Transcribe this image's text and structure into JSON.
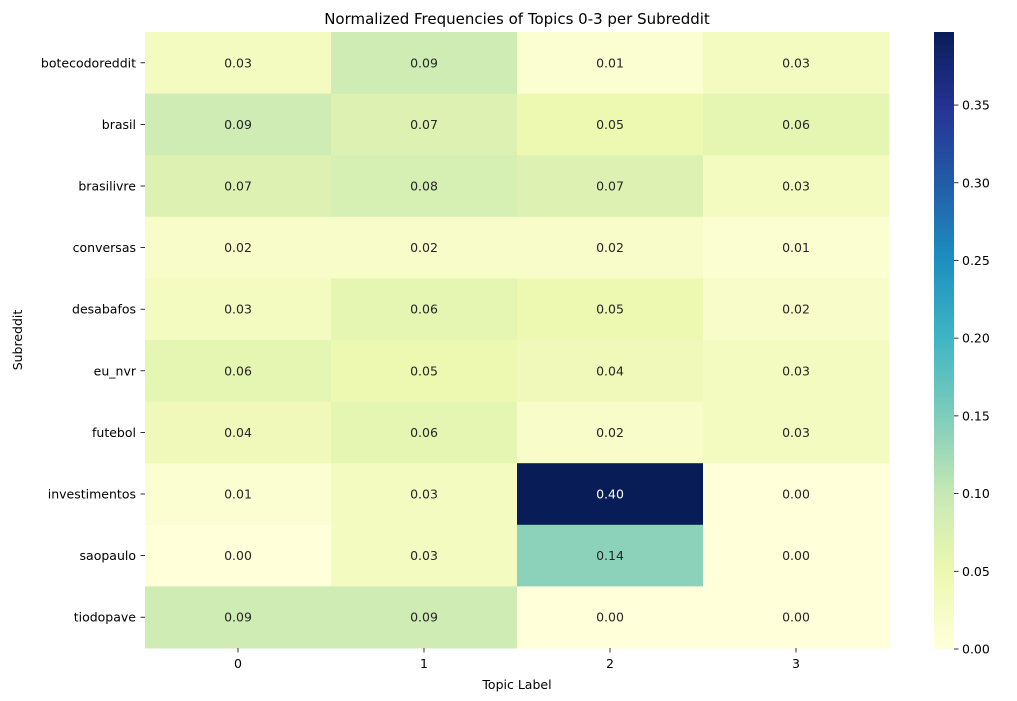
{
  "chart_data": {
    "type": "heatmap",
    "title": "Normalized Frequencies of Topics 0-3 per Subreddit",
    "xlabel": "Topic Label",
    "ylabel": "Subreddit",
    "x_categories": [
      "0",
      "1",
      "2",
      "3"
    ],
    "y_categories": [
      "botecodoreddit",
      "brasil",
      "brasilivre",
      "conversas",
      "desabafos",
      "eu_nvr",
      "futebol",
      "investimentos",
      "saopaulo",
      "tiodopave"
    ],
    "values": [
      [
        0.03,
        0.09,
        0.01,
        0.03
      ],
      [
        0.09,
        0.07,
        0.05,
        0.06
      ],
      [
        0.07,
        0.08,
        0.07,
        0.03
      ],
      [
        0.02,
        0.02,
        0.02,
        0.01
      ],
      [
        0.03,
        0.06,
        0.05,
        0.02
      ],
      [
        0.06,
        0.05,
        0.04,
        0.03
      ],
      [
        0.04,
        0.06,
        0.02,
        0.03
      ],
      [
        0.01,
        0.03,
        0.4,
        0.0
      ],
      [
        0.0,
        0.03,
        0.14,
        0.0
      ],
      [
        0.09,
        0.09,
        0.0,
        0.0
      ]
    ],
    "value_format": "0.00",
    "colormap": "YlGnBu",
    "colorbar": {
      "range": [
        0,
        0.397
      ],
      "ticks": [
        "0.00",
        "0.05",
        "0.10",
        "0.15",
        "0.20",
        "0.25",
        "0.30",
        "0.35"
      ]
    },
    "grid": false
  }
}
